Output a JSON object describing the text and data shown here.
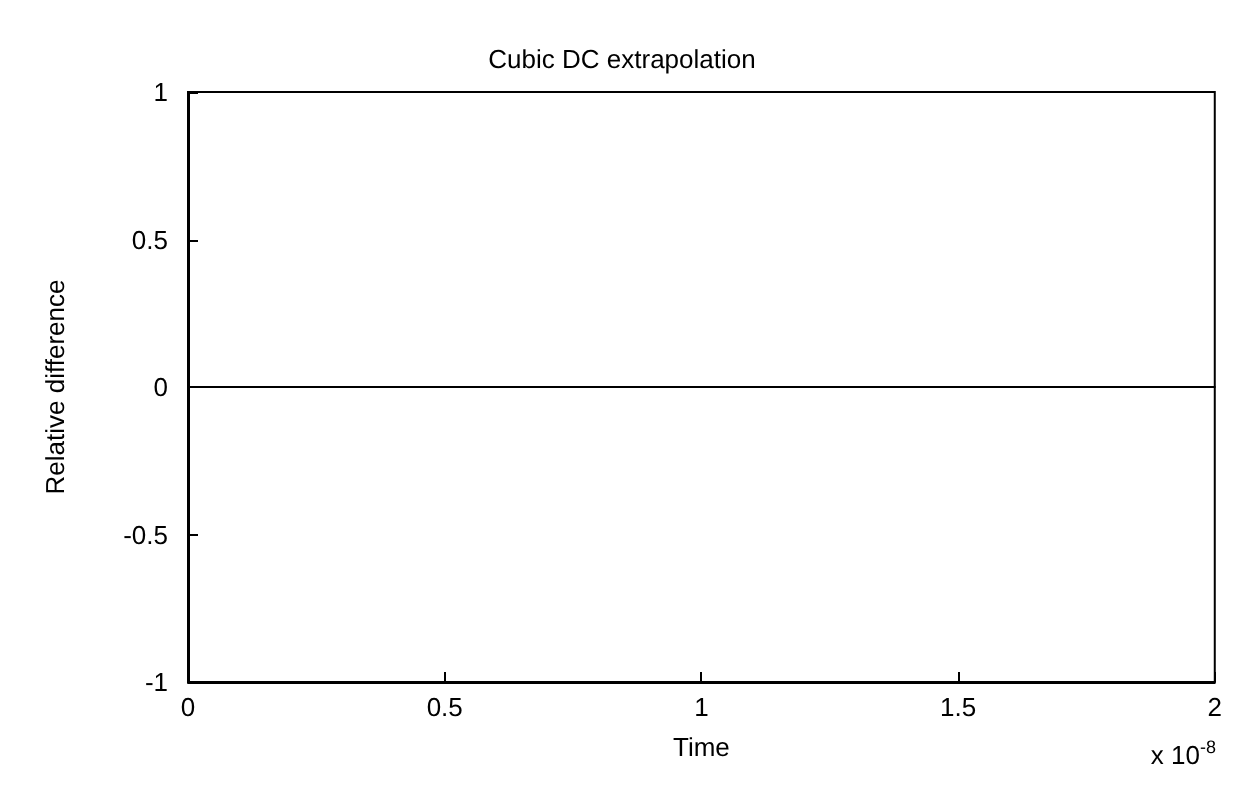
{
  "chart_data": {
    "type": "line",
    "title": "Cubic DC extrapolation",
    "xlabel": "Time",
    "ylabel": "Relative difference",
    "annotations": [
      "x 10$^{-8}$"
    ],
    "x": [
      0,
      2
    ],
    "series": [
      {
        "color": "#000000",
        "values": [
          0,
          0
        ]
      }
    ],
    "xlim": [
      0,
      2
    ],
    "xticks": [
      0,
      0.5,
      1,
      1.5,
      2
    ],
    "ylim": [
      -1,
      1
    ],
    "yticks": [
      -1,
      -0.5,
      0,
      0.5,
      1
    ],
    "grid": false,
    "marker": "none",
    "line_style": "solid"
  }
}
